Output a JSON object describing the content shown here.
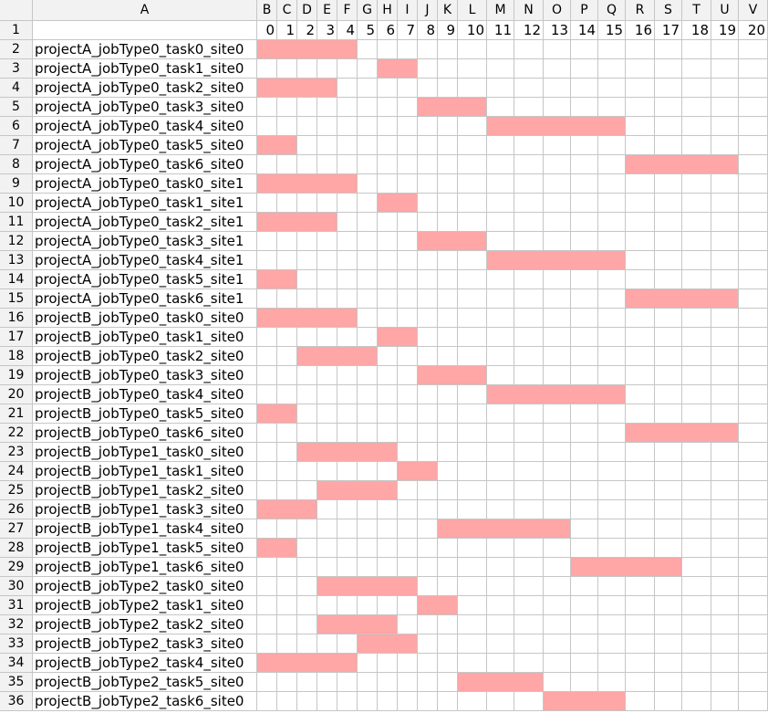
{
  "columns": [
    "A",
    "B",
    "C",
    "D",
    "E",
    "F",
    "G",
    "H",
    "I",
    "J",
    "K",
    "L",
    "M",
    "N",
    "O",
    "P",
    "Q",
    "R",
    "S",
    "T",
    "U",
    "V"
  ],
  "row_numbers": [
    "1",
    "2",
    "3",
    "4",
    "5",
    "6",
    "7",
    "8",
    "9",
    "10",
    "11",
    "12",
    "13",
    "14",
    "15",
    "16",
    "17",
    "18",
    "19",
    "20",
    "21",
    "22",
    "23",
    "24",
    "25",
    "26",
    "27",
    "28",
    "29",
    "30",
    "31",
    "32",
    "33",
    "34",
    "35",
    "36"
  ],
  "time_header": [
    "0",
    "1",
    "2",
    "3",
    "4",
    "5",
    "6",
    "7",
    "8",
    "9",
    "10",
    "11",
    "12",
    "13",
    "14",
    "15",
    "16",
    "17",
    "18",
    "19",
    "20"
  ],
  "fill_color": "#ffa6a6",
  "tasks": [
    {
      "label": "projectA_jobType0_task0_site0",
      "start": 0,
      "end": 5
    },
    {
      "label": "projectA_jobType0_task1_site0",
      "start": 6,
      "end": 8
    },
    {
      "label": "projectA_jobType0_task2_site0",
      "start": 0,
      "end": 4
    },
    {
      "label": "projectA_jobType0_task3_site0",
      "start": 8,
      "end": 11
    },
    {
      "label": "projectA_jobType0_task4_site0",
      "start": 11,
      "end": 16
    },
    {
      "label": "projectA_jobType0_task5_site0",
      "start": 0,
      "end": 2
    },
    {
      "label": "projectA_jobType0_task6_site0",
      "start": 16,
      "end": 20
    },
    {
      "label": "projectA_jobType0_task0_site1",
      "start": 0,
      "end": 5
    },
    {
      "label": "projectA_jobType0_task1_site1",
      "start": 6,
      "end": 8
    },
    {
      "label": "projectA_jobType0_task2_site1",
      "start": 0,
      "end": 4
    },
    {
      "label": "projectA_jobType0_task3_site1",
      "start": 8,
      "end": 11
    },
    {
      "label": "projectA_jobType0_task4_site1",
      "start": 11,
      "end": 16
    },
    {
      "label": "projectA_jobType0_task5_site1",
      "start": 0,
      "end": 2
    },
    {
      "label": "projectA_jobType0_task6_site1",
      "start": 16,
      "end": 20
    },
    {
      "label": "projectB_jobType0_task0_site0",
      "start": 0,
      "end": 5
    },
    {
      "label": "projectB_jobType0_task1_site0",
      "start": 6,
      "end": 8
    },
    {
      "label": "projectB_jobType0_task2_site0",
      "start": 2,
      "end": 6
    },
    {
      "label": "projectB_jobType0_task3_site0",
      "start": 8,
      "end": 11
    },
    {
      "label": "projectB_jobType0_task4_site0",
      "start": 11,
      "end": 16
    },
    {
      "label": "projectB_jobType0_task5_site0",
      "start": 0,
      "end": 2
    },
    {
      "label": "projectB_jobType0_task6_site0",
      "start": 16,
      "end": 20
    },
    {
      "label": "projectB_jobType1_task0_site0",
      "start": 2,
      "end": 7
    },
    {
      "label": "projectB_jobType1_task1_site0",
      "start": 7,
      "end": 9
    },
    {
      "label": "projectB_jobType1_task2_site0",
      "start": 3,
      "end": 7
    },
    {
      "label": "projectB_jobType1_task3_site0",
      "start": 0,
      "end": 3
    },
    {
      "label": "projectB_jobType1_task4_site0",
      "start": 9,
      "end": 14
    },
    {
      "label": "projectB_jobType1_task5_site0",
      "start": 0,
      "end": 2
    },
    {
      "label": "projectB_jobType1_task6_site0",
      "start": 14,
      "end": 18
    },
    {
      "label": "projectB_jobType2_task0_site0",
      "start": 3,
      "end": 8
    },
    {
      "label": "projectB_jobType2_task1_site0",
      "start": 8,
      "end": 10
    },
    {
      "label": "projectB_jobType2_task2_site0",
      "start": 3,
      "end": 7
    },
    {
      "label": "projectB_jobType2_task3_site0",
      "start": 5,
      "end": 8
    },
    {
      "label": "projectB_jobType2_task4_site0",
      "start": 0,
      "end": 5
    },
    {
      "label": "projectB_jobType2_task5_site0",
      "start": 10,
      "end": 13
    },
    {
      "label": "projectB_jobType2_task6_site0",
      "start": 13,
      "end": 16
    }
  ]
}
